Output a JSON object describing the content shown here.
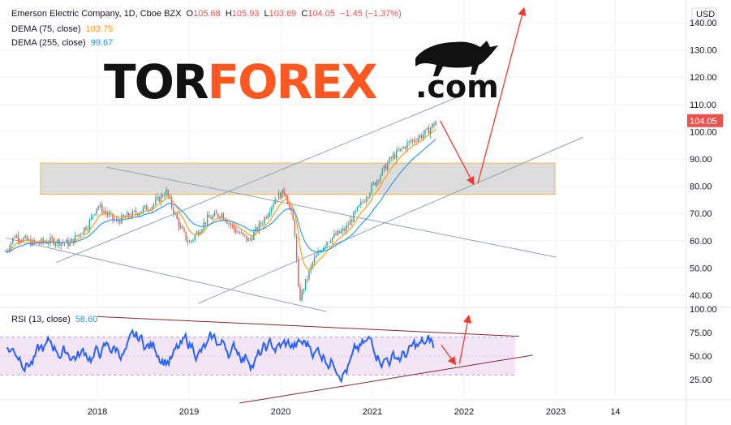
{
  "header": {
    "title": "Emerson Electric Company, 1D, Cboe BZX",
    "ohlc": [
      {
        "label": "O",
        "value": "105.68"
      },
      {
        "label": "H",
        "value": "105.93"
      },
      {
        "label": "L",
        "value": "103.69"
      },
      {
        "label": "C",
        "value": "104.05"
      }
    ],
    "change": "−1.45 (−1.37%)",
    "dema75_label": "DEMA (75, close)",
    "dema75_value": "103.75",
    "dema255_label": "DEMA (255, close)",
    "dema255_value": "99.67",
    "currency": "USD",
    "last_price": "104.05"
  },
  "logo": {
    "text_dark": "TOR",
    "text_red": "FOREX",
    "suffix": ".com"
  },
  "rsi": {
    "label": "RSI (13, close)",
    "value": "58.60"
  },
  "colors": {
    "up": "#26a69a",
    "down": "#ef5350",
    "dema75": "#ff9800",
    "dema255": "#2196f3",
    "rsi": "#2962ff",
    "channel": "#90a4ae",
    "zone": "#d6d6d6",
    "zone_border": "#f2b84b",
    "arrow": "#ef3b2c",
    "rsi_band": "#f3e5f5",
    "trend": "#8b2525",
    "logo_dark": "#111111",
    "logo_red": "#ff5722"
  },
  "chart_data": {
    "type": "candlestick",
    "title": "Emerson Electric Company, 1D, Cboe BZX",
    "currency": "USD",
    "x_ticks": [
      "2018",
      "2019",
      "2020",
      "2021",
      "2022",
      "2023",
      "14"
    ],
    "y_ticks": [
      "140.00",
      "130.00",
      "120.00",
      "110.00",
      "100.00",
      "90.00",
      "80.00",
      "70.00",
      "60.00",
      "50.00",
      "40.00"
    ],
    "ylim": [
      36,
      146
    ],
    "price_path": [
      {
        "date": "2017.0",
        "close": 56
      },
      {
        "date": "2017.1",
        "close": 62
      },
      {
        "date": "2017.3",
        "close": 59
      },
      {
        "date": "2017.5",
        "close": 60
      },
      {
        "date": "2017.7",
        "close": 59
      },
      {
        "date": "2017.9",
        "close": 66
      },
      {
        "date": "2018.0",
        "close": 73
      },
      {
        "date": "2018.2",
        "close": 67
      },
      {
        "date": "2018.4",
        "close": 70
      },
      {
        "date": "2018.6",
        "close": 73
      },
      {
        "date": "2018.75",
        "close": 78
      },
      {
        "date": "2018.9",
        "close": 65
      },
      {
        "date": "2019.0",
        "close": 59
      },
      {
        "date": "2019.2",
        "close": 68
      },
      {
        "date": "2019.35",
        "close": 70
      },
      {
        "date": "2019.5",
        "close": 64
      },
      {
        "date": "2019.65",
        "close": 60
      },
      {
        "date": "2019.8",
        "close": 67
      },
      {
        "date": "2019.95",
        "close": 76
      },
      {
        "date": "2020.05",
        "close": 78
      },
      {
        "date": "2020.15",
        "close": 65
      },
      {
        "date": "2020.2",
        "close": 38
      },
      {
        "date": "2020.35",
        "close": 52
      },
      {
        "date": "2020.5",
        "close": 60
      },
      {
        "date": "2020.7",
        "close": 64
      },
      {
        "date": "2020.85",
        "close": 72
      },
      {
        "date": "2021.0",
        "close": 80
      },
      {
        "date": "2021.2",
        "close": 90
      },
      {
        "date": "2021.4",
        "close": 96
      },
      {
        "date": "2021.6",
        "close": 100
      },
      {
        "date": "2021.7",
        "close": 104.05
      }
    ],
    "dema_75_last": 103.75,
    "dema_255_last": 99.67,
    "zone": {
      "x_start": "2017.38",
      "x_end": "2022.99",
      "y_low": 77,
      "y_high": 88.5
    },
    "channel_lines": [
      {
        "from": [
          "2017.55",
          52
        ],
        "to": [
          "2021.95",
          113
        ]
      },
      {
        "from": [
          "2019.1",
          37
        ],
        "to": [
          "2023.3",
          98
        ]
      },
      {
        "from": [
          "2018.1",
          87
        ],
        "to": [
          "2023.0",
          54
        ]
      },
      {
        "from": [
          "2017.0",
          61
        ],
        "to": [
          "2020.5",
          34
        ]
      }
    ],
    "forecast_arrows": [
      {
        "from": [
          "2021.74",
          104
        ],
        "to": [
          "2022.1",
          81
        ]
      },
      {
        "from": [
          "2022.15",
          81
        ],
        "to": [
          "2022.65",
          145
        ]
      }
    ],
    "rsi": {
      "period": 13,
      "last": 58.6,
      "y_ticks": [
        "100.00",
        "75.00",
        "50.00",
        "25.00"
      ],
      "levels": [
        70,
        30
      ],
      "ylim": [
        10,
        100
      ],
      "trendlines": [
        {
          "from": [
            "2018.0",
            92
          ],
          "to": [
            "2022.6",
            71
          ]
        },
        {
          "from": [
            "2019.55",
            0
          ],
          "to": [
            "2022.75",
            51
          ]
        }
      ],
      "arrows": [
        {
          "from": [
            "2021.75",
            62
          ],
          "to": [
            "2021.9",
            42
          ]
        },
        {
          "from": [
            "2021.95",
            42
          ],
          "to": [
            "2022.05",
            92
          ]
        }
      ]
    }
  }
}
